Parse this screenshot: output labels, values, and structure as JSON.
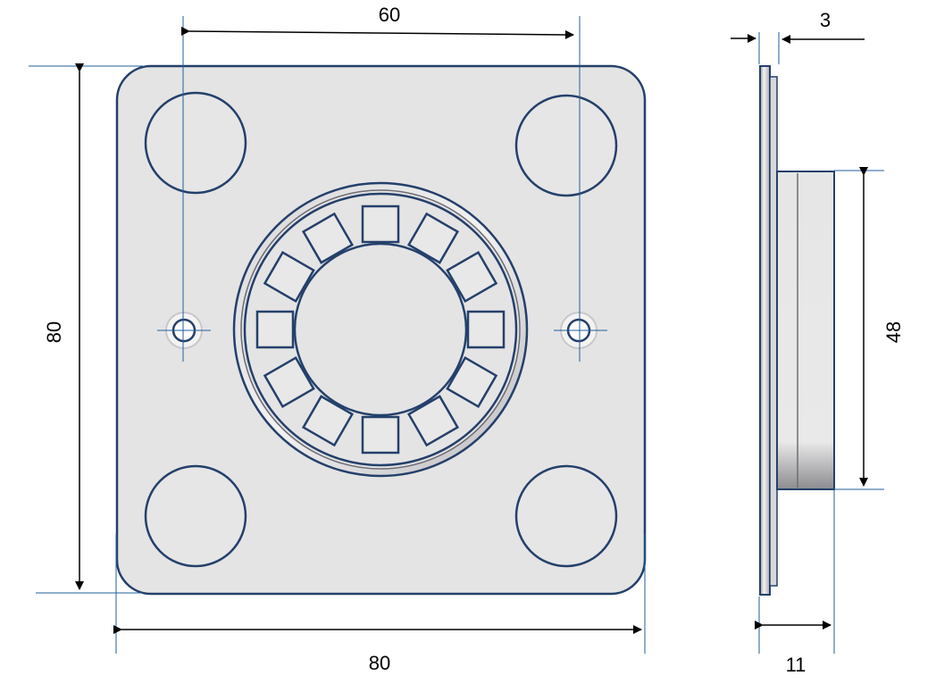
{
  "dimensions": {
    "top_width": "60",
    "total_width": "80",
    "total_height": "80",
    "side_thickness": "3",
    "side_depth": "11",
    "side_height": "48"
  },
  "views": [
    "front-view",
    "side-view"
  ]
}
